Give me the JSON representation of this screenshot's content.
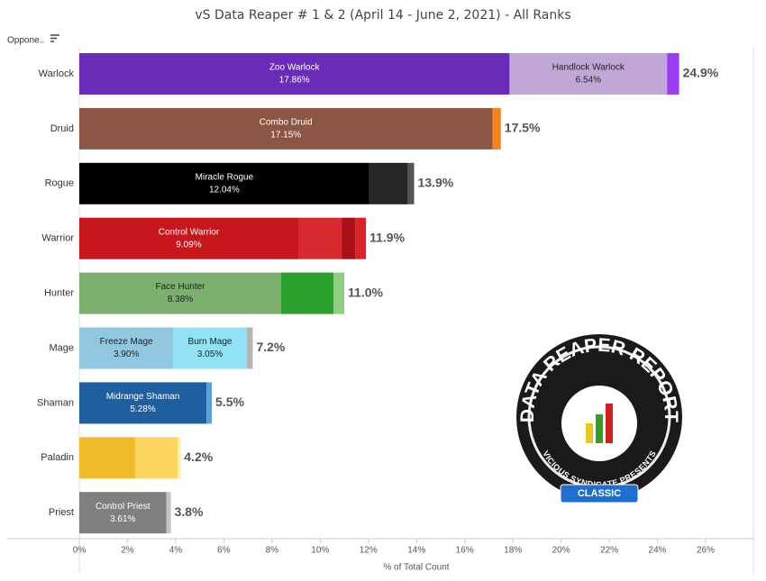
{
  "chart_data": {
    "type": "stacked-bar-horizontal",
    "title": "vS Data Reaper # 1 & 2 (April 14 - June 2, 2021) - All Ranks",
    "header": "Oppone..",
    "x_label": "% of Total Count",
    "categories": [
      "Warlock",
      "Druid",
      "Rogue",
      "Warrior",
      "Hunter",
      "Mage",
      "Shaman",
      "Paladin",
      "Priest"
    ],
    "bars": [
      {
        "segments": [
          {
            "name": "Zoo Warlock",
            "value": 17.86,
            "value_label": "17.86%",
            "color": "#6a2bb8"
          },
          {
            "name": "Handlock Warlock",
            "value": 6.54,
            "value_label": "6.54%",
            "color": "#c1a7d8"
          },
          {
            "value": 0.5,
            "color": "#9b3df0"
          }
        ],
        "total_label": "24.9%"
      },
      {
        "segments": [
          {
            "name": "Combo Druid",
            "value": 17.15,
            "value_label": "17.15%",
            "color": "#8b5646"
          },
          {
            "value": 0.35,
            "color": "#f58518"
          }
        ],
        "total_label": "17.5%"
      },
      {
        "segments": [
          {
            "name": "Miracle Rogue",
            "value": 12.04,
            "value_label": "12.04%",
            "color": "#000000"
          },
          {
            "value": 1.6,
            "color": "#262626"
          },
          {
            "value": 0.26,
            "color": "#555555"
          }
        ],
        "total_label": "13.9%"
      },
      {
        "segments": [
          {
            "name": "Control Warrior",
            "value": 9.09,
            "value_label": "9.09%",
            "color": "#c8161d"
          },
          {
            "value": 1.8,
            "color": "#d62a2f"
          },
          {
            "value": 0.56,
            "color": "#a8101a"
          },
          {
            "value": 0.45,
            "color": "#d9232a"
          }
        ],
        "total_label": "11.9%"
      },
      {
        "segments": [
          {
            "name": "Face Hunter",
            "value": 8.38,
            "value_label": "8.38%",
            "color": "#7bb06f"
          },
          {
            "value": 2.17,
            "color": "#2ca02c"
          },
          {
            "value": 0.45,
            "color": "#8ccf7e"
          }
        ],
        "total_label": "11.0%"
      },
      {
        "segments": [
          {
            "name": "Freeze Mage",
            "value": 3.9,
            "value_label": "3.90%",
            "color": "#92c7e0"
          },
          {
            "name": "Burn Mage",
            "value": 3.05,
            "value_label": "3.05%",
            "color": "#91e2f5"
          },
          {
            "value": 0.25,
            "color": "#b5b5b5"
          }
        ],
        "total_label": "7.2%"
      },
      {
        "segments": [
          {
            "name": "Midrange Shaman",
            "value": 5.28,
            "value_label": "5.28%",
            "color": "#1f5fa0"
          },
          {
            "value": 0.22,
            "color": "#5b9fd6"
          }
        ],
        "total_label": "5.5%"
      },
      {
        "segments": [
          {
            "value": 2.32,
            "color": "#f0bb2a"
          },
          {
            "value": 1.76,
            "color": "#fdd65f"
          },
          {
            "value": 0.12,
            "color": "#fff0a0"
          }
        ],
        "total_label": "4.2%"
      },
      {
        "segments": [
          {
            "name": "Control Priest",
            "value": 3.61,
            "value_label": "3.61%",
            "color": "#7f7f7f"
          },
          {
            "value": 0.19,
            "color": "#c3c3c3"
          }
        ],
        "total_label": "3.8%"
      }
    ],
    "xlim": [
      0,
      28
    ],
    "xticks": [
      {
        "value": 0,
        "label": "0%"
      },
      {
        "value": 2,
        "label": "2%"
      },
      {
        "value": 4,
        "label": "4%"
      },
      {
        "value": 6,
        "label": "6%"
      },
      {
        "value": 8,
        "label": "8%"
      },
      {
        "value": 10,
        "label": "10%"
      },
      {
        "value": 12,
        "label": "12%"
      },
      {
        "value": 14,
        "label": "14%"
      },
      {
        "value": 16,
        "label": "16%"
      },
      {
        "value": 18,
        "label": "18%"
      },
      {
        "value": 20,
        "label": "20%"
      },
      {
        "value": 22,
        "label": "22%"
      },
      {
        "value": 24,
        "label": "24%"
      },
      {
        "value": 26,
        "label": "26%"
      }
    ],
    "logo": {
      "title": "DATA REAPER REPORT",
      "subtitle": "VICIOUS SYNDICATE PRESENTS",
      "badge": "CLASSIC"
    }
  }
}
